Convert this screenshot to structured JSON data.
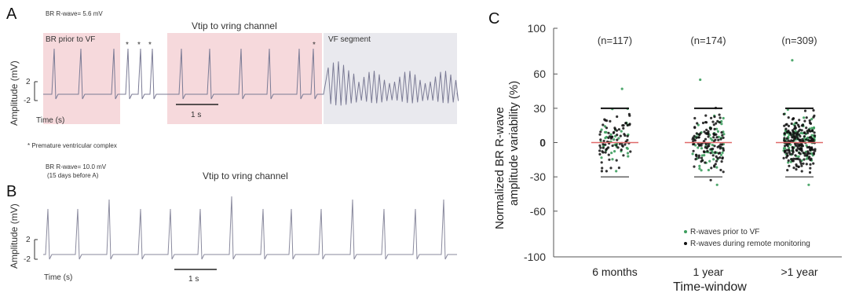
{
  "panel_a": {
    "label": "A",
    "header": "BR R-wave= 5.6 mV",
    "prior_label": "BR prior to VF",
    "channel": "Vtip to vring channel",
    "vf_label": "VF segment",
    "ylabel": "Amplitude (mV)",
    "tick_top": "2",
    "tick_bottom": "-2",
    "xlabel": "Time (s)",
    "scale": "1 s",
    "star": "*",
    "footnote": "* Premature ventricular complex"
  },
  "panel_b": {
    "label": "B",
    "header": "BR R-wave= 10.0 mV",
    "header2": "(15 days before A)",
    "channel": "Vtip to vring channel",
    "ylabel": "Amplitude (mV)",
    "tick_top": "2",
    "tick_bottom": "-2",
    "xlabel": "Time (s)",
    "scale": "1 s"
  },
  "panel_c": {
    "label": "C",
    "legend": [
      "R-waves prior to VF",
      "R-waves during remote monitoring"
    ],
    "colors": {
      "remote": "#111111",
      "prior": "#3d9e5e",
      "zero_line": "#e06a6a",
      "zero_tick": "#d9251b"
    }
  },
  "chart_data": {
    "type": "scatter",
    "title": "",
    "xlabel": "Time-window",
    "ylabel": "Normalized BR R-wave amplitude variability (%)",
    "ylim": [
      -100,
      100
    ],
    "yticks": [
      "100",
      "60",
      "30",
      "0",
      "-30",
      "-60",
      "-100"
    ],
    "categories": [
      "6 months",
      "1 year",
      ">1 year"
    ],
    "counts": [
      "(n=117)",
      "(n=174)",
      "(n=309)"
    ],
    "n": [
      117,
      174,
      309
    ],
    "upper_limit": [
      30,
      30,
      30
    ],
    "lower_limit": [
      -30,
      -30,
      -30
    ],
    "median": [
      0,
      0,
      0
    ],
    "max": [
      47,
      55,
      72
    ],
    "min": [
      -25,
      -37,
      -37
    ],
    "grid": false,
    "legend_position": "bottom-right",
    "series": [
      {
        "name": "R-waves prior to VF"
      },
      {
        "name": "R-waves during remote monitoring"
      }
    ]
  }
}
